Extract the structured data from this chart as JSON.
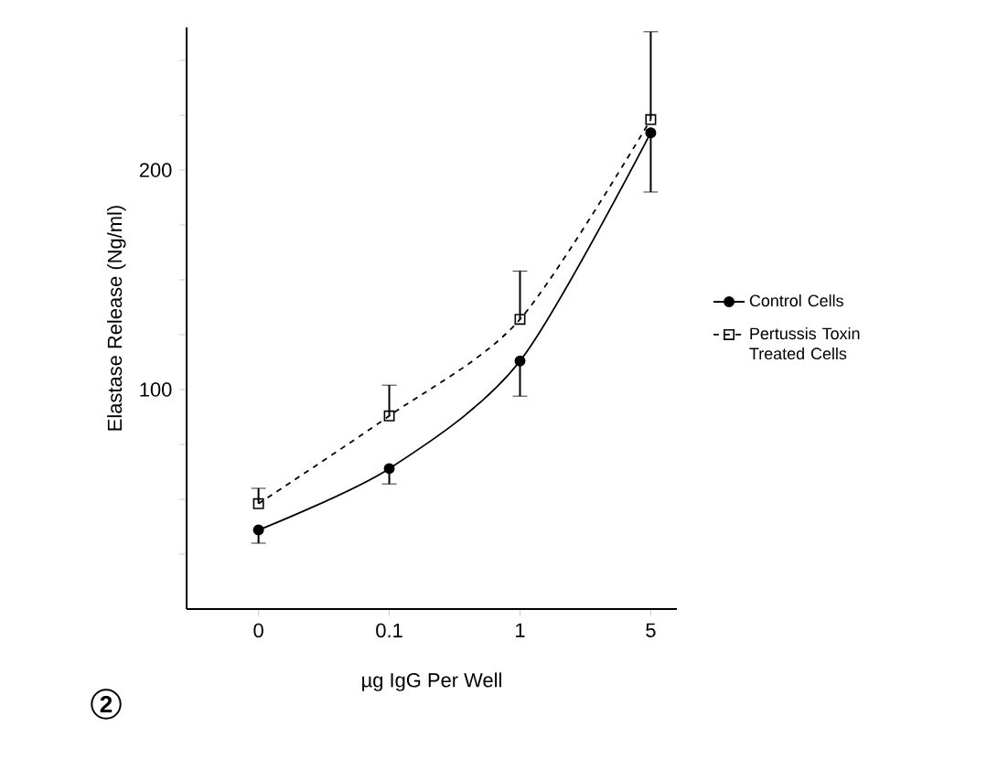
{
  "chart_data": {
    "type": "line",
    "xlabel": "µg IgG Per Well",
    "ylabel": "Elastase Release (Ng/ml)",
    "annotations": [
      "2"
    ],
    "categories": [
      "0",
      "0.1",
      "1",
      "5"
    ],
    "ylim": [
      0,
      265
    ],
    "yticks": [
      {
        "value": 25,
        "label": null
      },
      {
        "value": 50,
        "label": null
      },
      {
        "value": 75,
        "label": null
      },
      100,
      {
        "value": 125,
        "label": null
      },
      {
        "value": 150,
        "label": null
      },
      {
        "value": 175,
        "label": null
      },
      200,
      {
        "value": 225,
        "label": null
      },
      {
        "value": 250,
        "label": null
      }
    ],
    "legend": "right",
    "series": [
      {
        "name": "Control Cells",
        "color": "#000000",
        "marker": "circle",
        "line_style": "solid",
        "values": [
          36,
          64,
          113,
          217
        ],
        "errors": [
          [
            30,
            36
          ],
          [
            57,
            64
          ],
          [
            97,
            113
          ],
          [
            190,
            217
          ]
        ]
      },
      {
        "name": "Pertussis Toxin Treated Cells",
        "color": "#000000",
        "marker": "square",
        "line_style": "dashed",
        "values": [
          48,
          88,
          132,
          223
        ],
        "errors": [
          [
            48,
            55
          ],
          [
            88,
            102
          ],
          [
            132,
            154
          ],
          [
            223,
            263
          ]
        ]
      }
    ]
  }
}
